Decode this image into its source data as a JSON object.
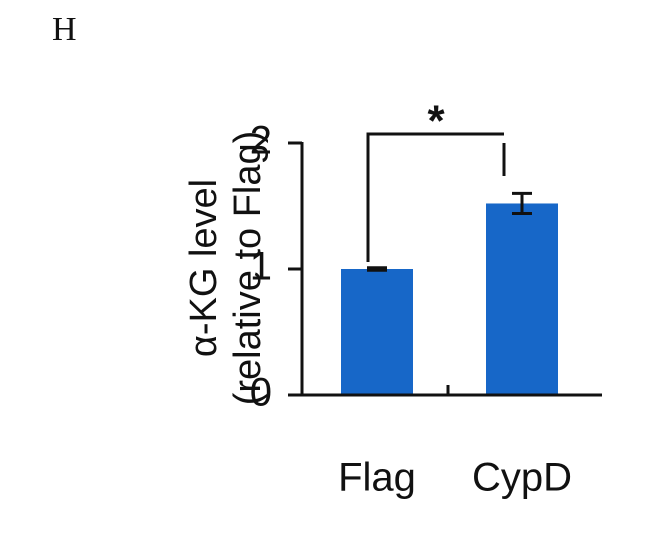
{
  "panel_label": "H",
  "chart_data": {
    "type": "bar",
    "y_label": [
      "α-KG level",
      "(relative to Flag)"
    ],
    "categories": [
      "Flag",
      "CypD"
    ],
    "values": [
      1.0,
      1.52
    ],
    "errors": [
      0.01,
      0.08
    ],
    "color": "#1767c8",
    "ylim": [
      0,
      2
    ],
    "yticks": [
      0,
      1,
      2
    ],
    "annotations": [
      "*"
    ]
  }
}
